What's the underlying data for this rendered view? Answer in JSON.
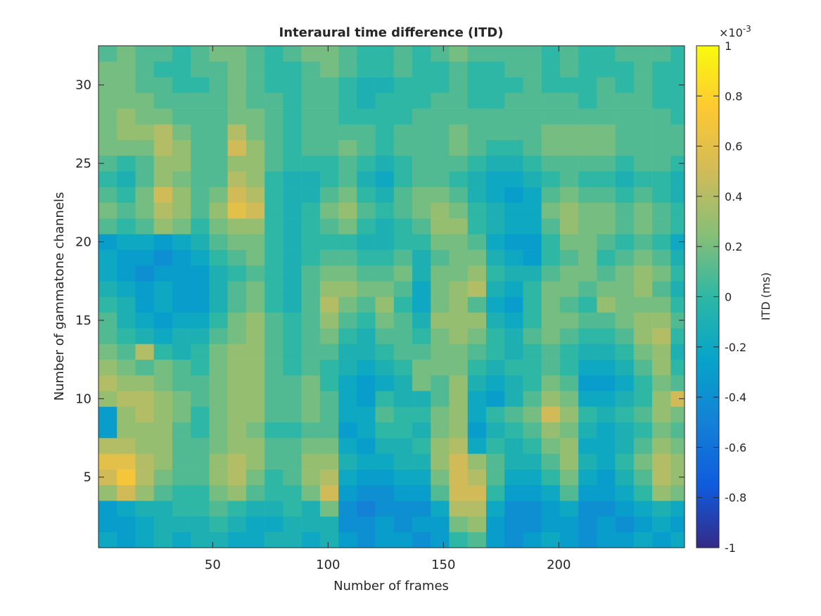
{
  "chart_data": {
    "type": "heatmap",
    "title": "Interaural time difference (ITD)",
    "xlabel": "Number of frames",
    "ylabel": "Number of gammatone channels",
    "colorbar_label": "ITD (ms)",
    "colorbar_multiplier": {
      "base": "×10",
      "exponent": "-3"
    },
    "xlim": [
      0.5,
      254.5
    ],
    "ylim": [
      0.5,
      32.5
    ],
    "xticks": [
      50,
      100,
      150,
      200
    ],
    "yticks": [
      5,
      10,
      15,
      20,
      25,
      30
    ],
    "clim": [
      -0.001,
      0.001
    ],
    "cticks": [
      {
        "value": -0.001,
        "label": "-1"
      },
      {
        "value": -0.0008,
        "label": "-0.8"
      },
      {
        "value": -0.0006,
        "label": "-0.6"
      },
      {
        "value": -0.0004,
        "label": "-0.4"
      },
      {
        "value": -0.0002,
        "label": "-0.2"
      },
      0,
      {
        "value": 0.0002,
        "label": "0.2"
      },
      {
        "value": 0.0004,
        "label": "0.4"
      },
      {
        "value": 0.0006,
        "label": "0.6"
      },
      {
        "value": 0.0008,
        "label": "0.8"
      },
      {
        "value": 0.001,
        "label": "1"
      }
    ],
    "colormap": [
      "#352a87",
      "#0f5cdd",
      "#1481d6",
      "#06a4ca",
      "#2eb7a4",
      "#87bf77",
      "#d1bb59",
      "#fec832",
      "#f9fb0e"
    ],
    "x_edges": [
      0.5,
      8.5,
      16.5,
      24.5,
      32.5,
      40.5,
      48.5,
      56.5,
      64.5,
      72.5,
      80.5,
      88.5,
      96.5,
      104.5,
      112.5,
      120.5,
      128.5,
      136.5,
      144.5,
      152.5,
      160.5,
      168.5,
      176.5,
      184.5,
      192.5,
      200.5,
      208.5,
      216.5,
      224.5,
      232.5,
      240.5,
      248.5,
      254.5
    ],
    "y": [
      1,
      2,
      3,
      4,
      5,
      6,
      7,
      8,
      9,
      10,
      11,
      12,
      13,
      14,
      15,
      16,
      17,
      18,
      19,
      20,
      21,
      22,
      23,
      24,
      25,
      26,
      27,
      28,
      29,
      30,
      31,
      32
    ],
    "z": [
      [
        -0.0002,
        -0.0003,
        -0.0002,
        -0.0001,
        -0.0002,
        -0.0001,
        -0.0001,
        -0.0002,
        -0.0002,
        -0.0001,
        -0.0001,
        -0.0002,
        -0.0001,
        -0.0003,
        -0.0004,
        -0.0003,
        -0.0003,
        -0.0004,
        -0.0003,
        0,
        0.0001,
        -0.0003,
        -0.0004,
        -0.0003,
        -0.0002,
        -0.0003,
        -0.0004,
        -0.0003,
        -0.0003,
        -0.0002,
        -0.0003,
        -0.0002
      ],
      [
        -0.0003,
        -0.0003,
        -0.0002,
        -0.0001,
        -0.0001,
        -0.0001,
        0,
        -0.0001,
        -0.0002,
        -0.0002,
        -0.0001,
        -0.0001,
        -0.0001,
        -0.0004,
        -0.0004,
        -0.0003,
        -0.0004,
        -0.0003,
        -0.0003,
        0.0002,
        0.0003,
        -0.0003,
        -0.0004,
        -0.0004,
        -0.0003,
        -0.0003,
        -0.0004,
        -0.0003,
        -0.0004,
        -0.0003,
        -0.0002,
        -0.0003
      ],
      [
        -0.0003,
        -0.0002,
        -0.0001,
        -0.0001,
        0,
        0,
        0.0001,
        0,
        -0.0001,
        -0.0001,
        0,
        -0.0001,
        0.0002,
        -0.0004,
        -0.0005,
        -0.0004,
        -0.0004,
        -0.0004,
        -0.0002,
        0.0004,
        0.0004,
        -0.0002,
        -0.0004,
        -0.0004,
        -0.0003,
        -0.0002,
        -0.0004,
        -0.0004,
        -0.0003,
        -0.0002,
        -0.0001,
        -0.0002
      ],
      [
        0.0003,
        0.0005,
        0.0003,
        0.0001,
        0,
        0,
        0.0002,
        0.0003,
        0.0001,
        0,
        0,
        0.0002,
        0.0005,
        -0.0003,
        -0.0004,
        -0.0004,
        -0.0003,
        -0.0003,
        0.0001,
        0.0005,
        0.0005,
        0,
        -0.0003,
        -0.0003,
        -0.0002,
        0.0001,
        -0.0003,
        -0.0003,
        -0.0002,
        0,
        0.0003,
        0.0002
      ],
      [
        0.0005,
        0.0007,
        0.0004,
        0.0002,
        0.0001,
        0.0001,
        0.0003,
        0.0004,
        0.0002,
        0,
        0.0001,
        0.0003,
        0.0004,
        -0.0002,
        -0.0003,
        -0.0003,
        -0.0002,
        -0.0002,
        0.0002,
        0.0005,
        0.0004,
        0.0001,
        -0.0002,
        -0.0002,
        0,
        0.0002,
        -0.0002,
        -0.0003,
        -0.0001,
        0.0001,
        0.0004,
        0.0003
      ],
      [
        0.0006,
        0.0006,
        0.0004,
        0.0003,
        0.0001,
        0.0001,
        0.0003,
        0.0004,
        0.0003,
        0.0001,
        0.0001,
        0.0003,
        0.0003,
        -0.0001,
        -0.0002,
        -0.0002,
        -0.0001,
        -0.0001,
        0.0003,
        0.0005,
        0.0003,
        0.0001,
        -0.0001,
        -0.0001,
        0.0001,
        0.0003,
        -0.0001,
        -0.0002,
        0,
        0.0002,
        0.0004,
        0.0003
      ],
      [
        0.0004,
        0.0004,
        0.0003,
        0.0003,
        0.0001,
        0.0001,
        0.0002,
        0.0003,
        0.0003,
        0.0001,
        0.0001,
        0.0002,
        0.0002,
        -0.0002,
        -0.0003,
        -0.0001,
        -0.0001,
        0,
        0.0003,
        0.0004,
        -0.0002,
        0,
        -0.0001,
        0,
        0.0002,
        0.0003,
        -0.0002,
        -0.0002,
        -0.0001,
        0.0001,
        0.0003,
        0.0002
      ],
      [
        -0.0003,
        0.0003,
        0.0003,
        0.0003,
        0.0001,
        0,
        0.0002,
        0.0003,
        0.0002,
        0,
        0,
        0.0001,
        0.0001,
        -0.0003,
        -0.0002,
        0,
        0,
        -0.0001,
        0.0002,
        0.0003,
        -0.0003,
        -0.0001,
        0,
        0.0001,
        0.0003,
        0.0002,
        -0.0001,
        -0.0002,
        -0.0001,
        0,
        0.0002,
        0.0001
      ],
      [
        -0.0003,
        0.0003,
        0.0004,
        0.0003,
        0.0002,
        0,
        0.0002,
        0.0003,
        0.0003,
        0.0001,
        0.0001,
        0.0002,
        0.0001,
        -0.0002,
        -0.0002,
        0.0001,
        0,
        0,
        0.0002,
        0.0003,
        -0.0002,
        0,
        0.0001,
        0.0002,
        0.0005,
        0.0003,
        0,
        -0.0001,
        0,
        0.0001,
        0.0003,
        0.0002
      ],
      [
        0.0003,
        0.0004,
        0.0004,
        0.0003,
        0.0002,
        0.0001,
        0.0002,
        0.0003,
        0.0003,
        0.0001,
        0.0001,
        0.0002,
        0.0001,
        -0.0002,
        -0.0003,
        0,
        -0.0001,
        -0.0001,
        0.0001,
        0.0003,
        -0.0002,
        -0.0003,
        -0.0001,
        0.0001,
        0.0003,
        0.0002,
        -0.0002,
        -0.0002,
        -0.0001,
        0,
        0.0003,
        0.0005
      ],
      [
        0.0004,
        0.0003,
        0.0003,
        0.0002,
        0.0001,
        0.0001,
        0.0002,
        0.0003,
        0.0003,
        0.0001,
        0.0001,
        0.0002,
        0,
        -0.0002,
        -0.0003,
        -0.0002,
        -0.0001,
        0.0002,
        0.0001,
        0.0003,
        -0.0001,
        -0.0002,
        -0.0001,
        0,
        0.0002,
        0.0001,
        -0.0003,
        -0.0003,
        -0.0002,
        0,
        0.0002,
        0.0001
      ],
      [
        0.0003,
        0.0002,
        0.0001,
        0.0002,
        0.0001,
        0,
        0.0002,
        0.0003,
        0.0003,
        0.0001,
        0,
        0.0001,
        0,
        -0.0001,
        -0.0002,
        -0.0001,
        0,
        0.0002,
        0.0002,
        0.0002,
        0,
        -0.0001,
        0,
        0,
        0.0001,
        0,
        -0.0002,
        -0.0002,
        -0.0001,
        0.0001,
        0.0003,
        0
      ],
      [
        0.0002,
        0.0001,
        0.0004,
        0,
        -0.0001,
        0,
        0.0002,
        0.0003,
        0.0003,
        0.0001,
        0,
        0.0001,
        0.0001,
        -0.0001,
        -0.0001,
        0,
        0.0001,
        0.0001,
        0.0002,
        0.0002,
        0.0001,
        0,
        -0.0001,
        0,
        0.0001,
        0,
        -0.0001,
        -0.0001,
        0,
        0.0002,
        0.0003,
        -0.0001
      ],
      [
        0.0001,
        0,
        -0.0001,
        -0.0002,
        -0.0001,
        -0.0001,
        0.0001,
        0.0002,
        0.0003,
        0.0001,
        0,
        0.0001,
        0.0002,
        0,
        -0.0001,
        0.0001,
        0.0001,
        0,
        0.0002,
        0.0003,
        0.0002,
        0,
        -0.0001,
        0.0001,
        0.0002,
        0.0001,
        0,
        0,
        0.0001,
        0.0003,
        0.0004,
        0
      ],
      [
        0.0001,
        -0.0001,
        -0.0002,
        -0.0003,
        -0.0002,
        -0.0002,
        0,
        0.0002,
        0.0003,
        0.0001,
        0,
        0.0001,
        0.0003,
        0.0001,
        0,
        0.0002,
        0.0001,
        -0.0001,
        0.0003,
        0.0003,
        0.0003,
        -0.0001,
        -0.0002,
        0,
        0.0002,
        0.0002,
        0.0001,
        0.0001,
        0.0002,
        0.0003,
        0.0003,
        0.0001
      ],
      [
        0,
        -0.0001,
        -0.0003,
        -0.0002,
        -0.0003,
        -0.0003,
        -0.0001,
        0.0001,
        0.0002,
        0,
        -0.0001,
        0.0001,
        0.0004,
        0.0002,
        0.0001,
        0.0003,
        0,
        -0.0002,
        0.0002,
        0.0003,
        0.0001,
        -0.0002,
        -0.0003,
        0,
        0.0002,
        0.0001,
        0,
        0.0003,
        0.0002,
        0.0002,
        0.0002,
        0
      ],
      [
        -0.0001,
        -0.0002,
        -0.0003,
        -0.0002,
        -0.0003,
        -0.0003,
        -0.0001,
        0.0001,
        0.0002,
        0,
        -0.0001,
        0.0001,
        0.0003,
        0.0003,
        0.0002,
        0.0002,
        0.0001,
        -0.0002,
        0.0002,
        0.0003,
        0.0004,
        -0.0001,
        -0.0002,
        0,
        0.0002,
        0.0002,
        0.0001,
        0.0002,
        0.0002,
        0.0003,
        0.0001,
        -0.0001
      ],
      [
        -0.0002,
        -0.0003,
        -0.0004,
        -0.0003,
        -0.0003,
        -0.0003,
        -0.0001,
        0,
        0.0001,
        0,
        -0.0001,
        0.0001,
        0.0002,
        0.0002,
        0.0001,
        0.0001,
        0.0002,
        -0.0001,
        0.0002,
        0.0002,
        0.0003,
        0,
        -0.0001,
        -0.0001,
        0.0001,
        0.0002,
        0.0002,
        0.0001,
        0.0002,
        0.0003,
        0.0002,
        0
      ],
      [
        -0.0002,
        -0.0003,
        -0.0003,
        -0.0004,
        -0.0003,
        -0.0002,
        0,
        0.0001,
        0.0002,
        0,
        -0.0001,
        0,
        0.0001,
        0.0001,
        0,
        0,
        0.0001,
        -0.0001,
        0.0001,
        0.0002,
        0.0002,
        -0.0001,
        -0.0002,
        -0.0003,
        0,
        0.0001,
        0.0002,
        0,
        0.0001,
        0.0002,
        0.0001,
        -0.0001
      ],
      [
        -0.0003,
        -0.0002,
        -0.0002,
        -0.0003,
        -0.0002,
        -0.0001,
        0.0001,
        0.0002,
        0.0002,
        0,
        -0.0001,
        0,
        0,
        0,
        -0.0001,
        -0.0001,
        0,
        0,
        0.0002,
        0.0002,
        0.0001,
        -0.0002,
        -0.0003,
        -0.0003,
        0,
        0.0002,
        0.0002,
        0.0001,
        0,
        0.0001,
        0,
        -0.0002
      ],
      [
        0.0001,
        0,
        0.0001,
        0.0003,
        0.0002,
        0,
        0.0002,
        0.0003,
        0.0003,
        0,
        -0.0001,
        0,
        0.0001,
        0.0002,
        0,
        -0.0001,
        0,
        0.0001,
        0.0003,
        0.0003,
        0,
        -0.0001,
        -0.0002,
        -0.0002,
        0.0001,
        0.0003,
        0.0002,
        0.0002,
        0.0001,
        0.0002,
        0.0001,
        0
      ],
      [
        0.0002,
        0.0001,
        0.0002,
        0.0004,
        0.0003,
        0.0001,
        0.0003,
        0.0006,
        0.0005,
        0,
        -0.0001,
        0,
        0.0002,
        0.0003,
        0.0001,
        0,
        0.0001,
        0.0002,
        0.0003,
        0.0002,
        0,
        -0.0001,
        -0.0002,
        -0.0002,
        0.0002,
        0.0003,
        0.0002,
        0.0002,
        0.0001,
        0.0002,
        0.0001,
        0
      ],
      [
        0.0001,
        0,
        0.0002,
        0.0005,
        0.0003,
        0.0001,
        0.0002,
        0.0005,
        0.0004,
        0,
        -0.0001,
        -0.0001,
        0.0001,
        0.0002,
        0,
        -0.0001,
        0.0001,
        0.0002,
        0.0002,
        0.0001,
        -0.0001,
        -0.0002,
        -0.0003,
        -0.0002,
        0.0001,
        0.0002,
        0.0001,
        0.0001,
        0,
        0.0001,
        0,
        -0.0001
      ],
      [
        0,
        -0.0001,
        0.0001,
        0.0003,
        0.0002,
        0.0001,
        0.0001,
        0.0004,
        0.0003,
        0,
        -0.0001,
        -0.0001,
        0,
        0.0001,
        -0.0001,
        -0.0002,
        0,
        0.0001,
        0.0001,
        0,
        -0.0001,
        -0.0002,
        -0.0002,
        -0.0001,
        0,
        0.0001,
        0,
        0,
        -0.0001,
        0,
        0,
        -0.0001
      ],
      [
        0.0001,
        0,
        0.0001,
        0.0003,
        0.0003,
        0.0001,
        0.0001,
        0.0003,
        0.0003,
        0.0001,
        0,
        0,
        0,
        0.0001,
        0,
        -0.0001,
        0,
        0.0001,
        0.0001,
        0.0001,
        0,
        -0.0001,
        -0.0001,
        0,
        0.0001,
        0.0001,
        0.0001,
        0.0001,
        0,
        0.0001,
        0.0001,
        0
      ],
      [
        0.0002,
        0.0002,
        0.0002,
        0.0004,
        0.0003,
        0.0001,
        0.0001,
        0.0005,
        0.0003,
        0.0001,
        0,
        0.0001,
        0.0001,
        0.0002,
        0.0001,
        0,
        0.0001,
        0.0001,
        0.0001,
        0.0002,
        0.0001,
        0,
        0,
        0.0001,
        0.0002,
        0.0002,
        0.0002,
        0.0002,
        0.0001,
        0.0001,
        0.0001,
        0.0001
      ],
      [
        0.0002,
        0.0003,
        0.0003,
        0.0004,
        0.0002,
        0.0001,
        0.0001,
        0.0004,
        0.0002,
        0.0001,
        0,
        0.0001,
        0.0001,
        0.0001,
        0.0001,
        0,
        0.0001,
        0.0001,
        0.0001,
        0.0002,
        0.0001,
        0.0001,
        0.0001,
        0.0001,
        0.0002,
        0.0002,
        0.0002,
        0.0002,
        0.0001,
        0.0001,
        0.0001,
        0.0001
      ],
      [
        0.0002,
        0.0003,
        0.0002,
        0.0002,
        0.0001,
        0.0001,
        0.0001,
        0.0002,
        0.0002,
        0.0001,
        0,
        0.0001,
        0.0001,
        0,
        0,
        0,
        0,
        0.0001,
        0.0001,
        0.0001,
        0.0001,
        0.0001,
        0.0001,
        0.0001,
        0.0001,
        0.0001,
        0.0001,
        0.0001,
        0.0001,
        0.0001,
        0.0001,
        0
      ],
      [
        0.0002,
        0.0002,
        0.0002,
        0.0001,
        0.0001,
        0.0001,
        0.0001,
        0.0002,
        0.0001,
        0.0001,
        0,
        0.0001,
        0.0001,
        0,
        -0.0001,
        0,
        0,
        0,
        0.0001,
        0.0001,
        0,
        0,
        0.0001,
        0.0001,
        0.0001,
        0.0001,
        0,
        0.0001,
        0.0001,
        0.0001,
        0,
        0
      ],
      [
        0.0002,
        0.0002,
        0.0001,
        0.0001,
        0,
        0,
        0.0001,
        0.0002,
        0.0001,
        0,
        0,
        0.0001,
        0.0001,
        0,
        -0.0001,
        -0.0001,
        0,
        0,
        0,
        0.0001,
        0,
        0,
        0,
        0.0001,
        0,
        0,
        0,
        0.0001,
        0,
        0.0001,
        0,
        0
      ],
      [
        0.0002,
        0.0002,
        0.0001,
        0,
        0,
        0.0001,
        0.0001,
        0.0002,
        0.0001,
        0,
        0,
        0.0001,
        0.0002,
        0.0001,
        0,
        0,
        0.0001,
        0,
        0,
        0.0001,
        0,
        0,
        0.0001,
        0.0001,
        0,
        0.0001,
        0,
        0,
        0,
        0.0001,
        0,
        0
      ],
      [
        0.0001,
        0.0002,
        0.0001,
        0.0001,
        0,
        0.0001,
        0.0002,
        0.0002,
        0.0001,
        0,
        0.0001,
        0.0002,
        0.0002,
        0.0001,
        0,
        0,
        0.0001,
        0,
        0.0001,
        0.0002,
        0.0001,
        0.0001,
        0.0001,
        0.0001,
        0,
        0.0001,
        0,
        0,
        0.0001,
        0.0001,
        0.0001,
        0
      ]
    ]
  }
}
